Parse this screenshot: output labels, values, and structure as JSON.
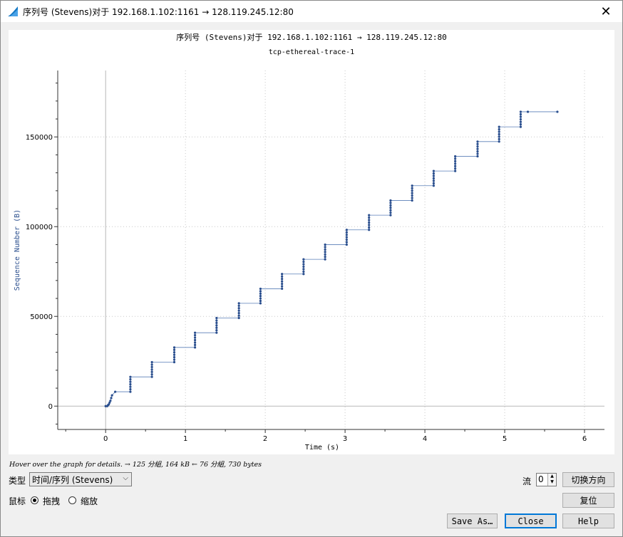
{
  "window": {
    "title": "序列号 (Stevens)对于 192.168.1.102:1161 → 128.119.245.12:80",
    "close_glyph": "✕"
  },
  "chart_data": {
    "type": "scatter",
    "title": "序列号 (Stevens)对于 192.168.1.102:1161 → 128.119.245.12:80",
    "subtitle": "tcp-ethereal-trace-1",
    "xlabel": "Time (s)",
    "ylabel": "Sequence Number (B)",
    "xlim": [
      -0.6,
      6.25
    ],
    "ylim": [
      -13000,
      187000
    ],
    "xticks": [
      0,
      1,
      2,
      3,
      4,
      5,
      6
    ],
    "yticks": [
      0,
      50000,
      100000,
      150000
    ],
    "ytick_labels": [
      "0",
      "50000",
      "100000",
      "150000"
    ],
    "grid": true,
    "series_color": "#2b4f8e",
    "initial_points": [
      [
        0.0,
        0
      ],
      [
        0.02,
        0
      ],
      [
        0.03,
        566
      ],
      [
        0.04,
        1000
      ],
      [
        0.05,
        2000
      ],
      [
        0.06,
        3000
      ],
      [
        0.07,
        4500
      ],
      [
        0.08,
        6000
      ],
      [
        0.12,
        8000
      ]
    ],
    "bursts": [
      {
        "t": 0.31,
        "from": 8000,
        "to": 16300
      },
      {
        "t": 0.58,
        "from": 16300,
        "to": 24500
      },
      {
        "t": 0.86,
        "from": 24500,
        "to": 32700
      },
      {
        "t": 1.12,
        "from": 32700,
        "to": 40900
      },
      {
        "t": 1.39,
        "from": 40900,
        "to": 49100
      },
      {
        "t": 1.67,
        "from": 49100,
        "to": 57300
      },
      {
        "t": 1.94,
        "from": 57300,
        "to": 65400
      },
      {
        "t": 2.21,
        "from": 65400,
        "to": 73600
      },
      {
        "t": 2.48,
        "from": 73600,
        "to": 81800
      },
      {
        "t": 2.75,
        "from": 81800,
        "to": 90000
      },
      {
        "t": 3.02,
        "from": 90000,
        "to": 98200
      },
      {
        "t": 3.3,
        "from": 98200,
        "to": 106400
      },
      {
        "t": 3.57,
        "from": 106400,
        "to": 114600
      },
      {
        "t": 3.84,
        "from": 114600,
        "to": 122800
      },
      {
        "t": 4.11,
        "from": 122800,
        "to": 131000
      },
      {
        "t": 4.38,
        "from": 131000,
        "to": 139200
      },
      {
        "t": 4.66,
        "from": 139200,
        "to": 147400
      },
      {
        "t": 4.93,
        "from": 147400,
        "to": 155600
      },
      {
        "t": 5.2,
        "from": 155600,
        "to": 164000
      }
    ],
    "tail_points": [
      [
        5.29,
        164000
      ],
      [
        5.66,
        164000
      ]
    ]
  },
  "status": {
    "hint": "Hover over the graph for details. → 125 分組, 164 kB ← 76 分組, 730 bytes"
  },
  "controls": {
    "type_label": "类型",
    "type_value": "时间/序列 (Stevens)",
    "combo_arrow": "⌵",
    "mouse_label": "鼠标",
    "drag_label": "拖拽",
    "zoom_label": "缩放",
    "stream_label": "流",
    "stream_value": "0",
    "spin_up": "▲",
    "spin_down": "▼",
    "switch_direction": "切换方向",
    "reset": "复位",
    "save_as": "Save As…",
    "close": "Close",
    "help": "Help"
  }
}
